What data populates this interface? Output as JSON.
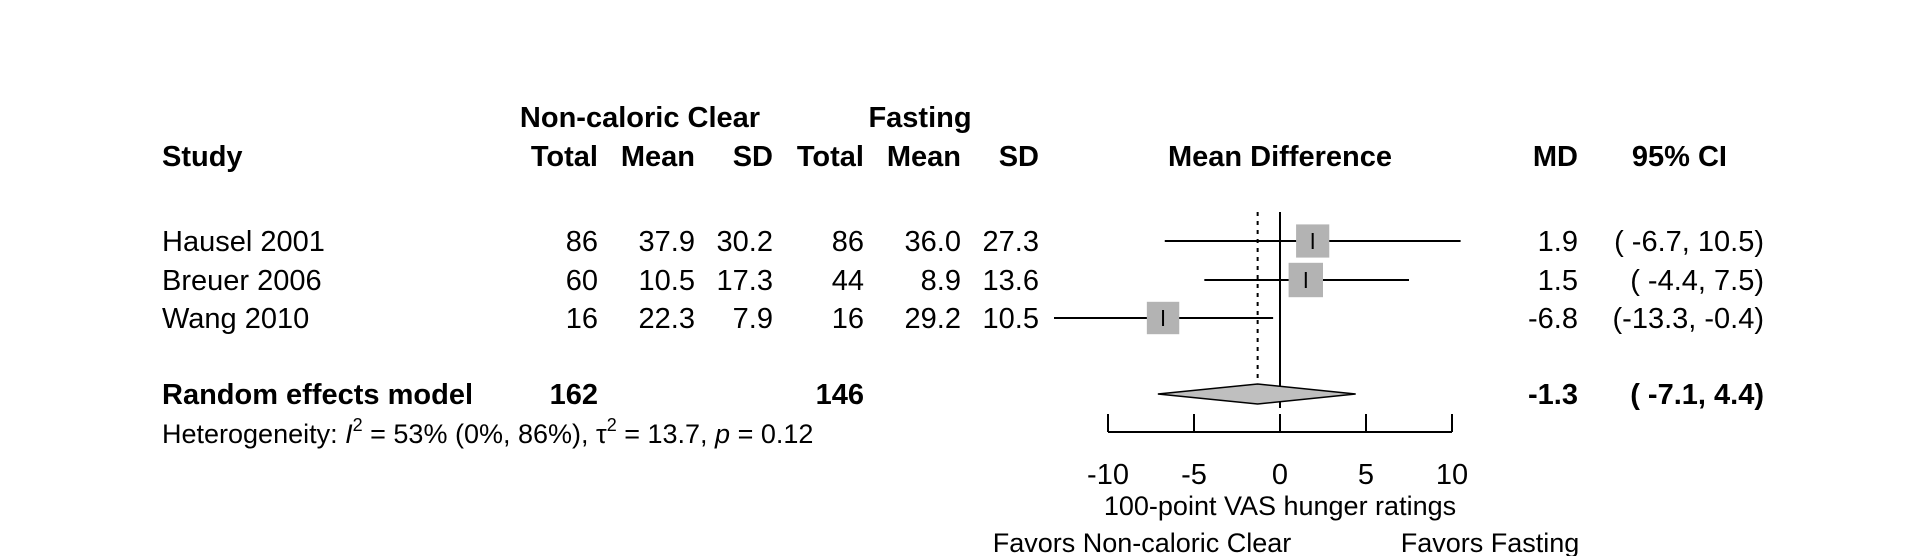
{
  "chart_data": {
    "type": "forest",
    "headers": {
      "group1_title": "Non-caloric Clear",
      "group2_title": "Fasting",
      "study": "Study",
      "total": "Total",
      "mean": "Mean",
      "sd": "SD",
      "plot_title": "Mean Difference",
      "md": "MD",
      "ci": "95% CI"
    },
    "studies": [
      {
        "name": "Hausel 2001",
        "g1_total": "86",
        "g1_mean": "37.9",
        "g1_sd": "30.2",
        "g2_total": "86",
        "g2_mean": "36.0",
        "g2_sd": "27.3",
        "md_text": "1.9",
        "ci_text": "( -6.7, 10.5)",
        "md": 1.9,
        "lo": -6.7,
        "hi": 10.5,
        "weight": 0.33
      },
      {
        "name": "Breuer 2006",
        "g1_total": "60",
        "g1_mean": "10.5",
        "g1_sd": "17.3",
        "g2_total": "44",
        "g2_mean": "8.9",
        "g2_sd": "13.6",
        "md_text": "1.5",
        "ci_text": "( -4.4,  7.5)",
        "md": 1.5,
        "lo": -4.4,
        "hi": 7.5,
        "weight": 0.36
      },
      {
        "name": "Wang 2010",
        "g1_total": "16",
        "g1_mean": "22.3",
        "g1_sd": "7.9",
        "g2_total": "16",
        "g2_mean": "29.2",
        "g2_sd": "10.5",
        "md_text": "-6.8",
        "ci_text": "(-13.3, -0.4)",
        "md": -6.8,
        "lo": -13.3,
        "hi": -0.4,
        "weight": 0.31
      }
    ],
    "pooled": {
      "label": "Random effects model",
      "g1_total": "162",
      "g2_total": "146",
      "md_text": "-1.3",
      "ci_text": "( -7.1,  4.4)",
      "md": -1.3,
      "lo": -7.1,
      "hi": 4.4
    },
    "heterogeneity": {
      "prefix": "Heterogeneity: ",
      "i_sym": "I",
      "sup": "2",
      "i_text": " = 53% (0%, 86%), ",
      "tau_sym": "τ",
      "tau_text": " = 13.7, ",
      "p_sym": "p",
      "p_text": " = 0.12"
    },
    "x_axis": {
      "ticks": [
        -10,
        -5,
        0,
        5,
        10
      ],
      "tick_labels": [
        "-10",
        "-5",
        "0",
        "5",
        "10"
      ],
      "range": [
        -10,
        10
      ],
      "label": "100-point VAS hunger ratings"
    },
    "favors_left": "Favors Non-caloric Clear",
    "favors_right": "Favors Fasting",
    "colors": {
      "square": "#b3b3b3",
      "diamond": "#bfbfbf",
      "line": "#000000"
    }
  }
}
